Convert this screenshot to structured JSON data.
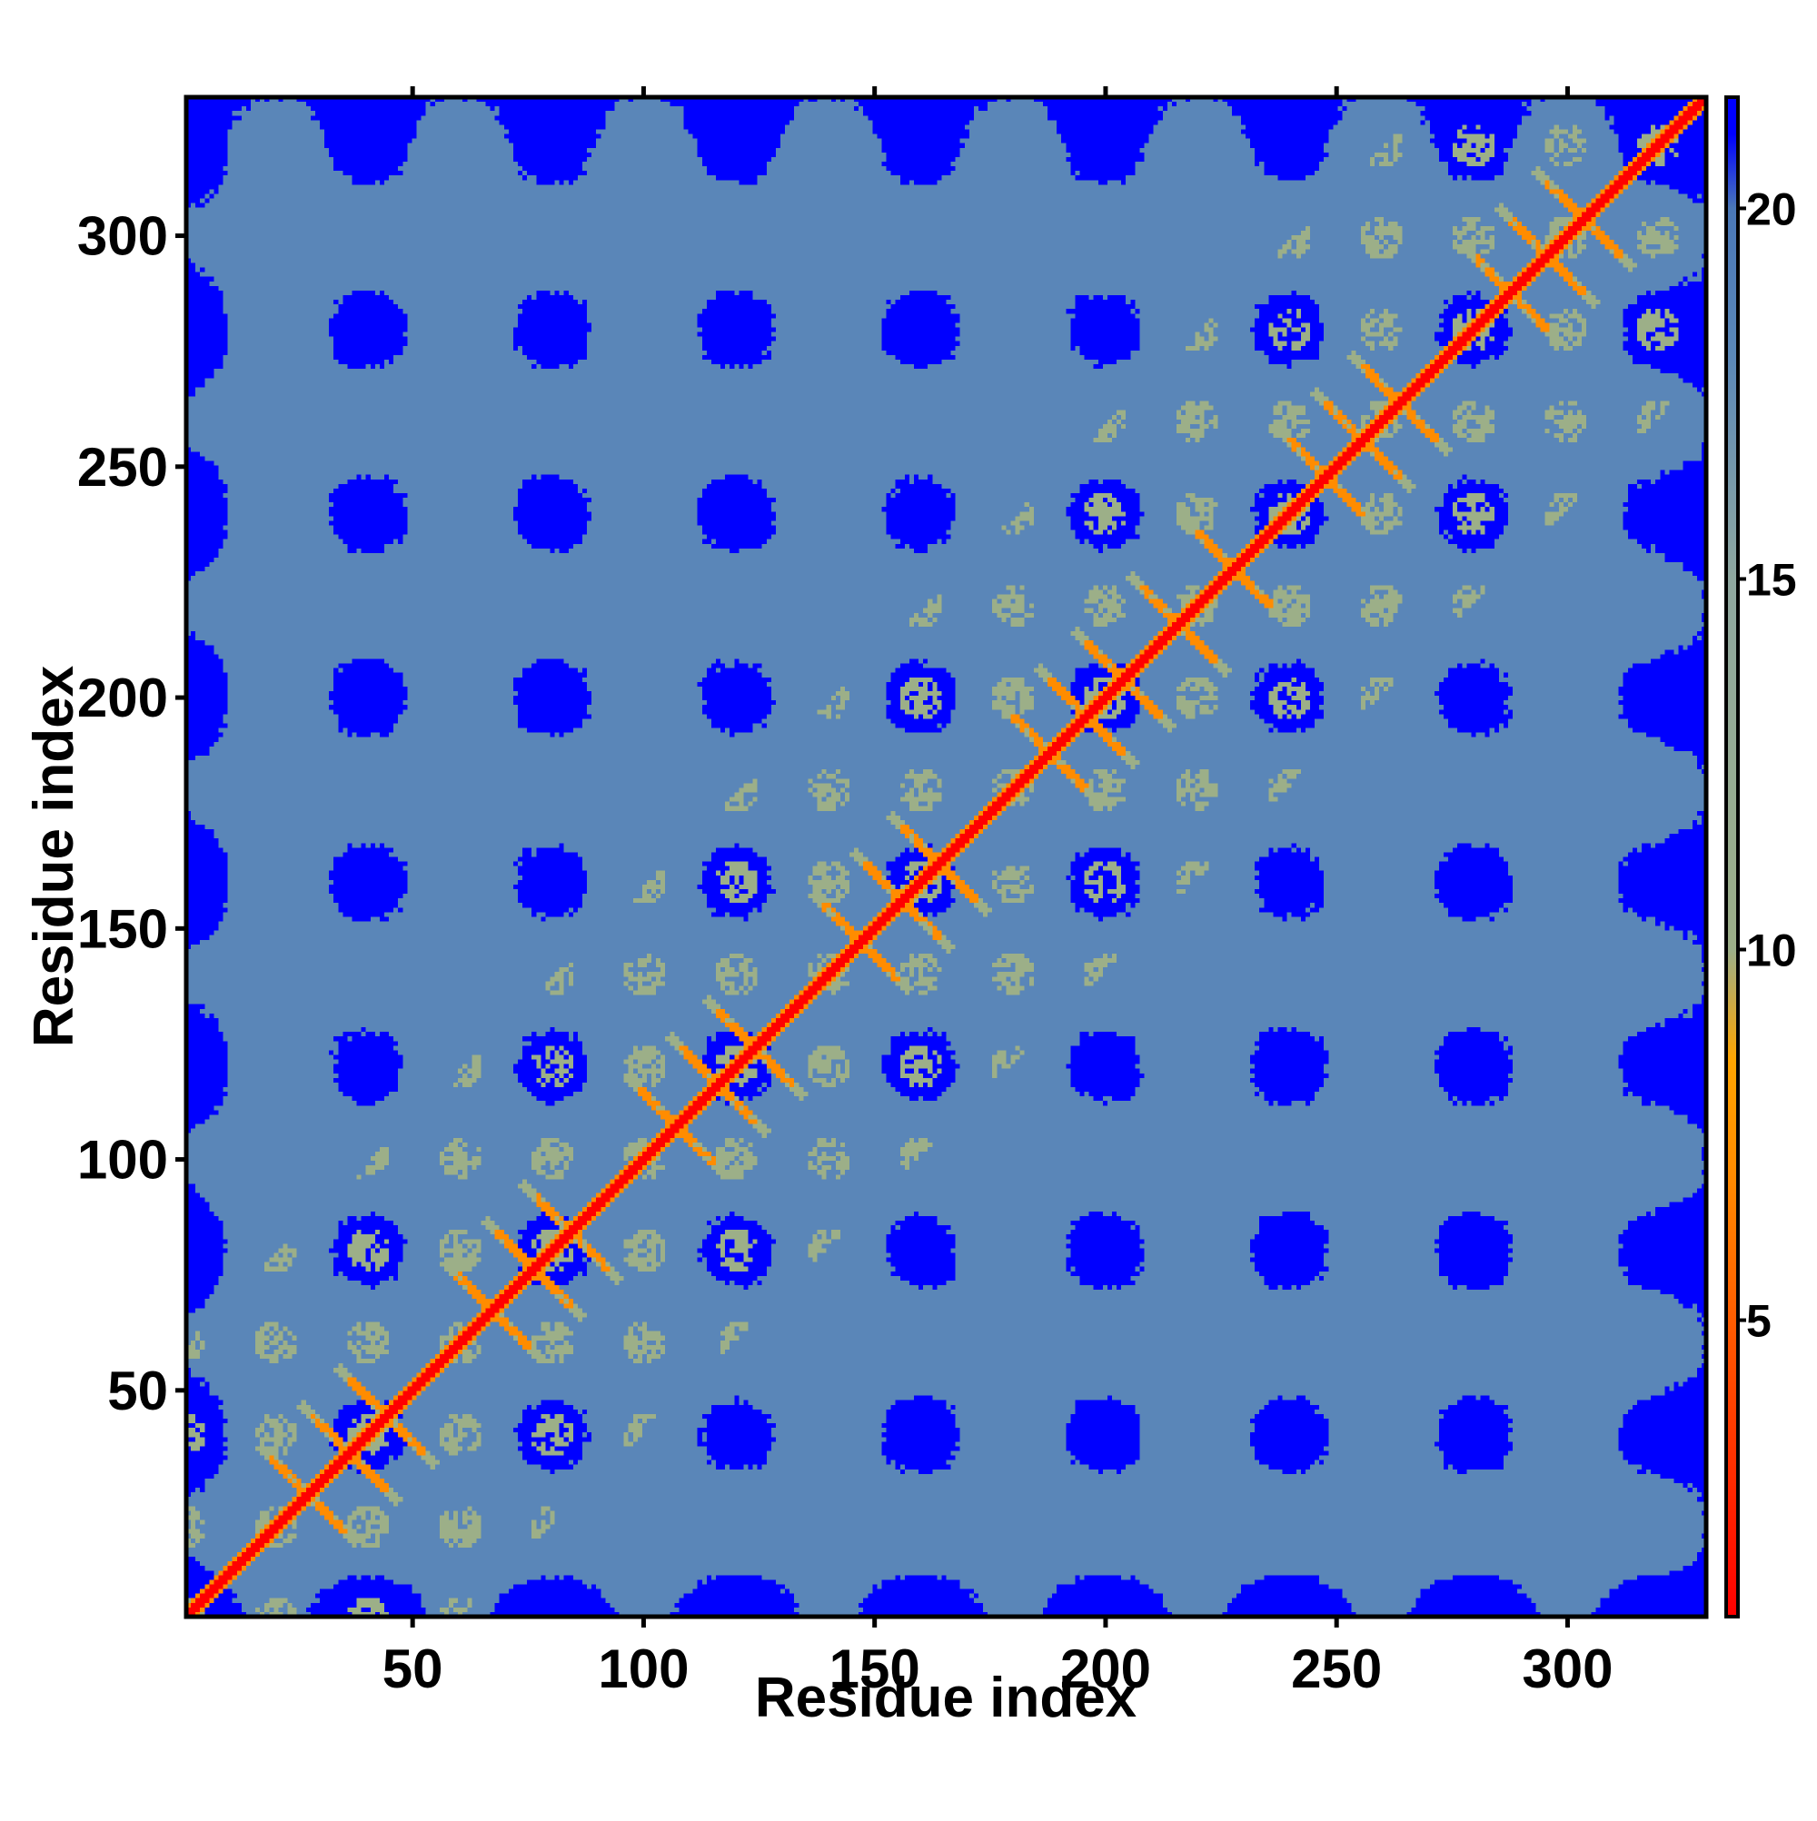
{
  "chart_data": {
    "type": "heatmap",
    "title": "",
    "xlabel": "Residue index",
    "ylabel": "Residue index",
    "n_residues": 330,
    "xlim": [
      1,
      330
    ],
    "ylim": [
      1,
      330
    ],
    "x_ticks": [
      50,
      100,
      150,
      200,
      250,
      300
    ],
    "y_ticks": [
      50,
      100,
      150,
      200,
      250,
      300
    ],
    "colorbar": {
      "ticks": [
        5,
        10,
        15,
        20
      ],
      "range": [
        1,
        21.5
      ],
      "stops": [
        {
          "value": 1,
          "color": "#ff0000"
        },
        {
          "value": 4,
          "color": "#ff4500"
        },
        {
          "value": 7,
          "color": "#ff8c00"
        },
        {
          "value": 8.5,
          "color": "#ffa500"
        },
        {
          "value": 10,
          "color": "#9caf88"
        },
        {
          "value": 15,
          "color": "#8fa8a0"
        },
        {
          "value": 18,
          "color": "#5b88b8"
        },
        {
          "value": 20,
          "color": "#4a78b8"
        },
        {
          "value": 21,
          "color": "#0000ff"
        }
      ]
    },
    "colors": {
      "diagonal": "#ff0000",
      "contact": "#ff8c00",
      "near": "#9caf88",
      "background": "#5a86b8",
      "far": "#0000ff"
    },
    "description_features": {
      "diagonal_contacts": "red line along x = y",
      "antiparallel_crossings_at": [
        27,
        36,
        44,
        67,
        76,
        84,
        107,
        116,
        124,
        147,
        156,
        164,
        188,
        196,
        204,
        216,
        228,
        248,
        256,
        264,
        288,
        296,
        304
      ]
    }
  }
}
